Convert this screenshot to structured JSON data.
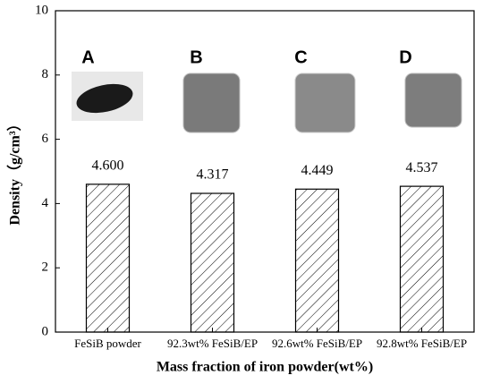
{
  "chart_data": {
    "type": "bar",
    "ylabel": "Density（g/cm³）",
    "xlabel": "Mass fraction of iron powder(wt%)",
    "categories": [
      "FeSiB powder",
      "92.3wt% FeSiB/EP",
      "92.6wt% FeSiB/EP",
      "92.8wt% FeSiB/EP"
    ],
    "values": [
      4.6,
      4.317,
      4.449,
      4.537
    ],
    "value_labels": [
      "4.600",
      "4.317",
      "4.449",
      "4.537"
    ],
    "annotations": [
      "A",
      "B",
      "C",
      "D"
    ],
    "color": "#000000",
    "ylim": [
      0,
      10
    ],
    "yticks": [
      0,
      2,
      4,
      6,
      8,
      10
    ]
  }
}
